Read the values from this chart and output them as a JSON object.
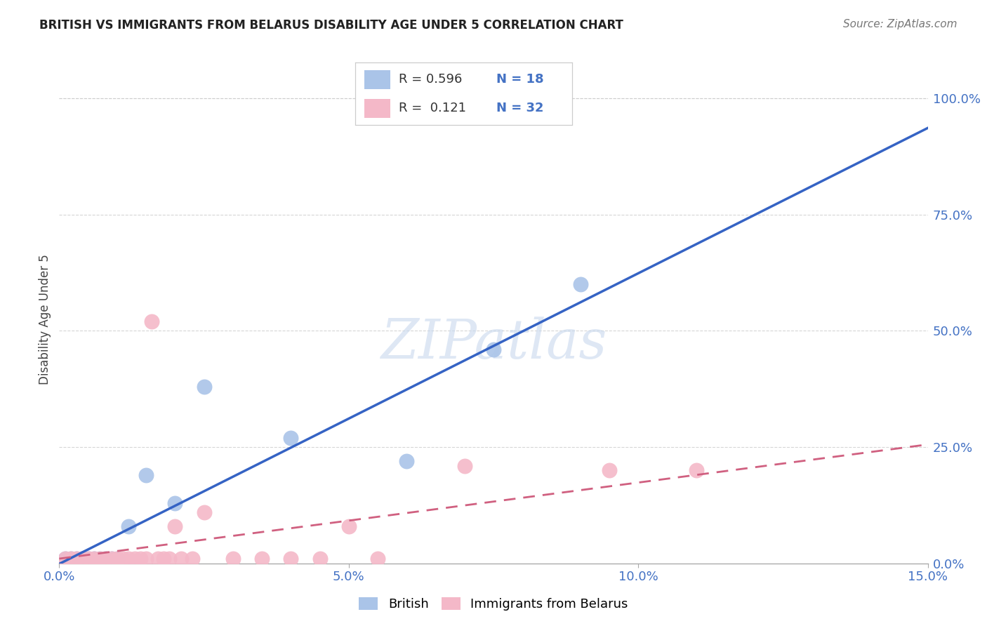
{
  "title": "BRITISH VS IMMIGRANTS FROM BELARUS DISABILITY AGE UNDER 5 CORRELATION CHART",
  "source": "Source: ZipAtlas.com",
  "ylabel": "Disability Age Under 5",
  "xlim": [
    0.0,
    0.15
  ],
  "ylim": [
    0.0,
    1.05
  ],
  "xticks": [
    0.0,
    0.05,
    0.1,
    0.15
  ],
  "xtick_labels": [
    "0.0%",
    "5.0%",
    "10.0%",
    "15.0%"
  ],
  "yticks_right": [
    0.0,
    0.25,
    0.5,
    0.75,
    1.0
  ],
  "ytick_right_labels": [
    "0.0%",
    "25.0%",
    "50.0%",
    "75.0%",
    "100.0%"
  ],
  "british_color": "#aac4e8",
  "belarus_color": "#f4b8c8",
  "british_line_color": "#3563c4",
  "belarus_line_color": "#d06080",
  "R_british": 0.596,
  "N_british": 18,
  "R_belarus": 0.121,
  "N_belarus": 32,
  "british_x": [
    0.001,
    0.002,
    0.003,
    0.004,
    0.005,
    0.006,
    0.007,
    0.008,
    0.009,
    0.01,
    0.012,
    0.015,
    0.02,
    0.025,
    0.04,
    0.06,
    0.075,
    0.09
  ],
  "british_y": [
    0.01,
    0.01,
    0.01,
    0.01,
    0.01,
    0.01,
    0.01,
    0.01,
    0.01,
    0.01,
    0.08,
    0.19,
    0.13,
    0.38,
    0.27,
    0.22,
    0.46,
    0.6
  ],
  "belarus_x": [
    0.001,
    0.002,
    0.003,
    0.004,
    0.005,
    0.006,
    0.007,
    0.008,
    0.009,
    0.01,
    0.011,
    0.012,
    0.013,
    0.014,
    0.015,
    0.016,
    0.017,
    0.018,
    0.019,
    0.02,
    0.021,
    0.023,
    0.025,
    0.03,
    0.035,
    0.04,
    0.045,
    0.05,
    0.055,
    0.07,
    0.095,
    0.11
  ],
  "belarus_y": [
    0.01,
    0.01,
    0.01,
    0.01,
    0.01,
    0.01,
    0.01,
    0.01,
    0.01,
    0.01,
    0.01,
    0.01,
    0.01,
    0.01,
    0.01,
    0.52,
    0.01,
    0.01,
    0.01,
    0.08,
    0.01,
    0.01,
    0.11,
    0.01,
    0.01,
    0.01,
    0.01,
    0.08,
    0.01,
    0.21,
    0.2,
    0.2
  ],
  "watermark_text": "ZIPatlas",
  "background_color": "#ffffff",
  "grid_color": "#cccccc"
}
